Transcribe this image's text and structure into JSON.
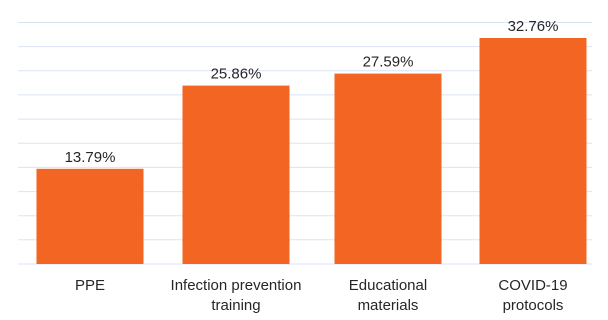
{
  "chart_data": {
    "type": "bar",
    "categories": [
      [
        "PPE"
      ],
      [
        "Infection prevention",
        "training"
      ],
      [
        "Educational",
        "materials"
      ],
      [
        "COVID-19",
        "protocols"
      ]
    ],
    "values": [
      13.79,
      25.86,
      27.59,
      32.76
    ],
    "value_labels": [
      "13.79%",
      "25.86%",
      "27.59%",
      "32.76%"
    ],
    "title": "",
    "xlabel": "",
    "ylabel": "",
    "ylim": [
      0,
      35
    ],
    "grid": true,
    "legend": "none",
    "bar_color": "#f26522",
    "grid_color": "#dbe3f5",
    "text_color": "#262626"
  }
}
